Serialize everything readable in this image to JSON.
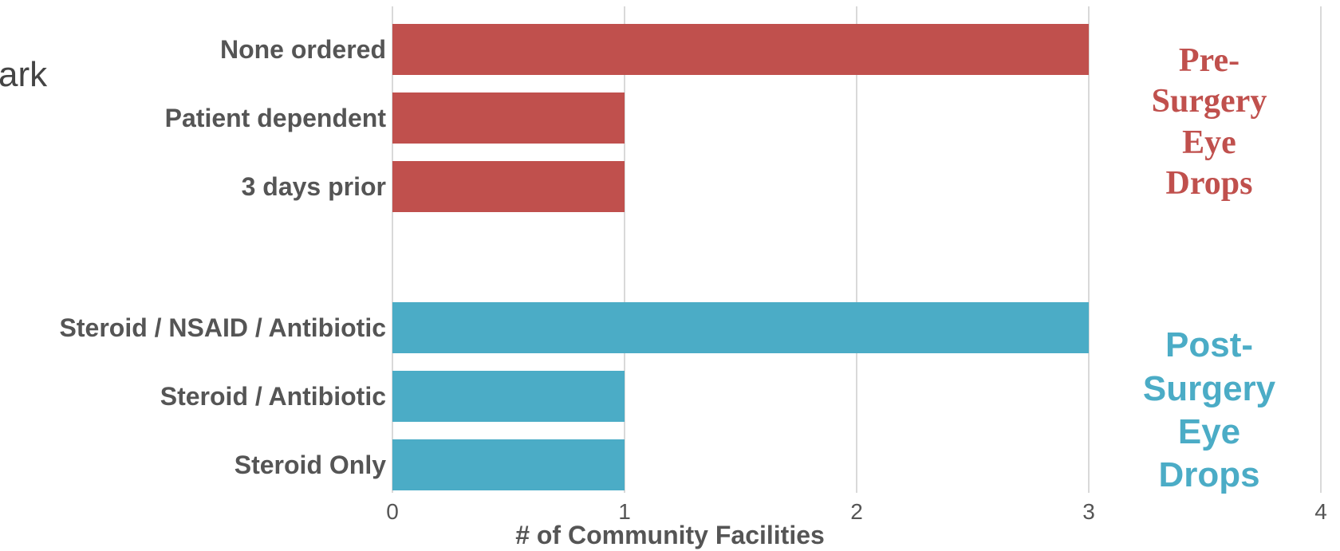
{
  "page_fragment": "ark",
  "chart_data": {
    "type": "bar",
    "orientation": "horizontal",
    "xlabel": "# of Community Facilities",
    "xlim": [
      0,
      4
    ],
    "xticks": [
      "0",
      "1",
      "2",
      "3",
      "4"
    ],
    "grid": true,
    "groups": [
      {
        "name": "Pre-\nSurgery\nEye\nDrops",
        "color": "#c0504d",
        "categories": [
          "None ordered",
          "Patient dependent",
          "3 days prior"
        ],
        "values": [
          3,
          1,
          1
        ]
      },
      {
        "name": "Post-\nSurgery\nEye\nDrops",
        "color": "#4bacc6",
        "categories": [
          "Steroid / NSAID / Antibiotic",
          "Steroid / Antibiotic",
          "Steroid Only"
        ],
        "values": [
          3,
          1,
          1
        ]
      }
    ]
  }
}
